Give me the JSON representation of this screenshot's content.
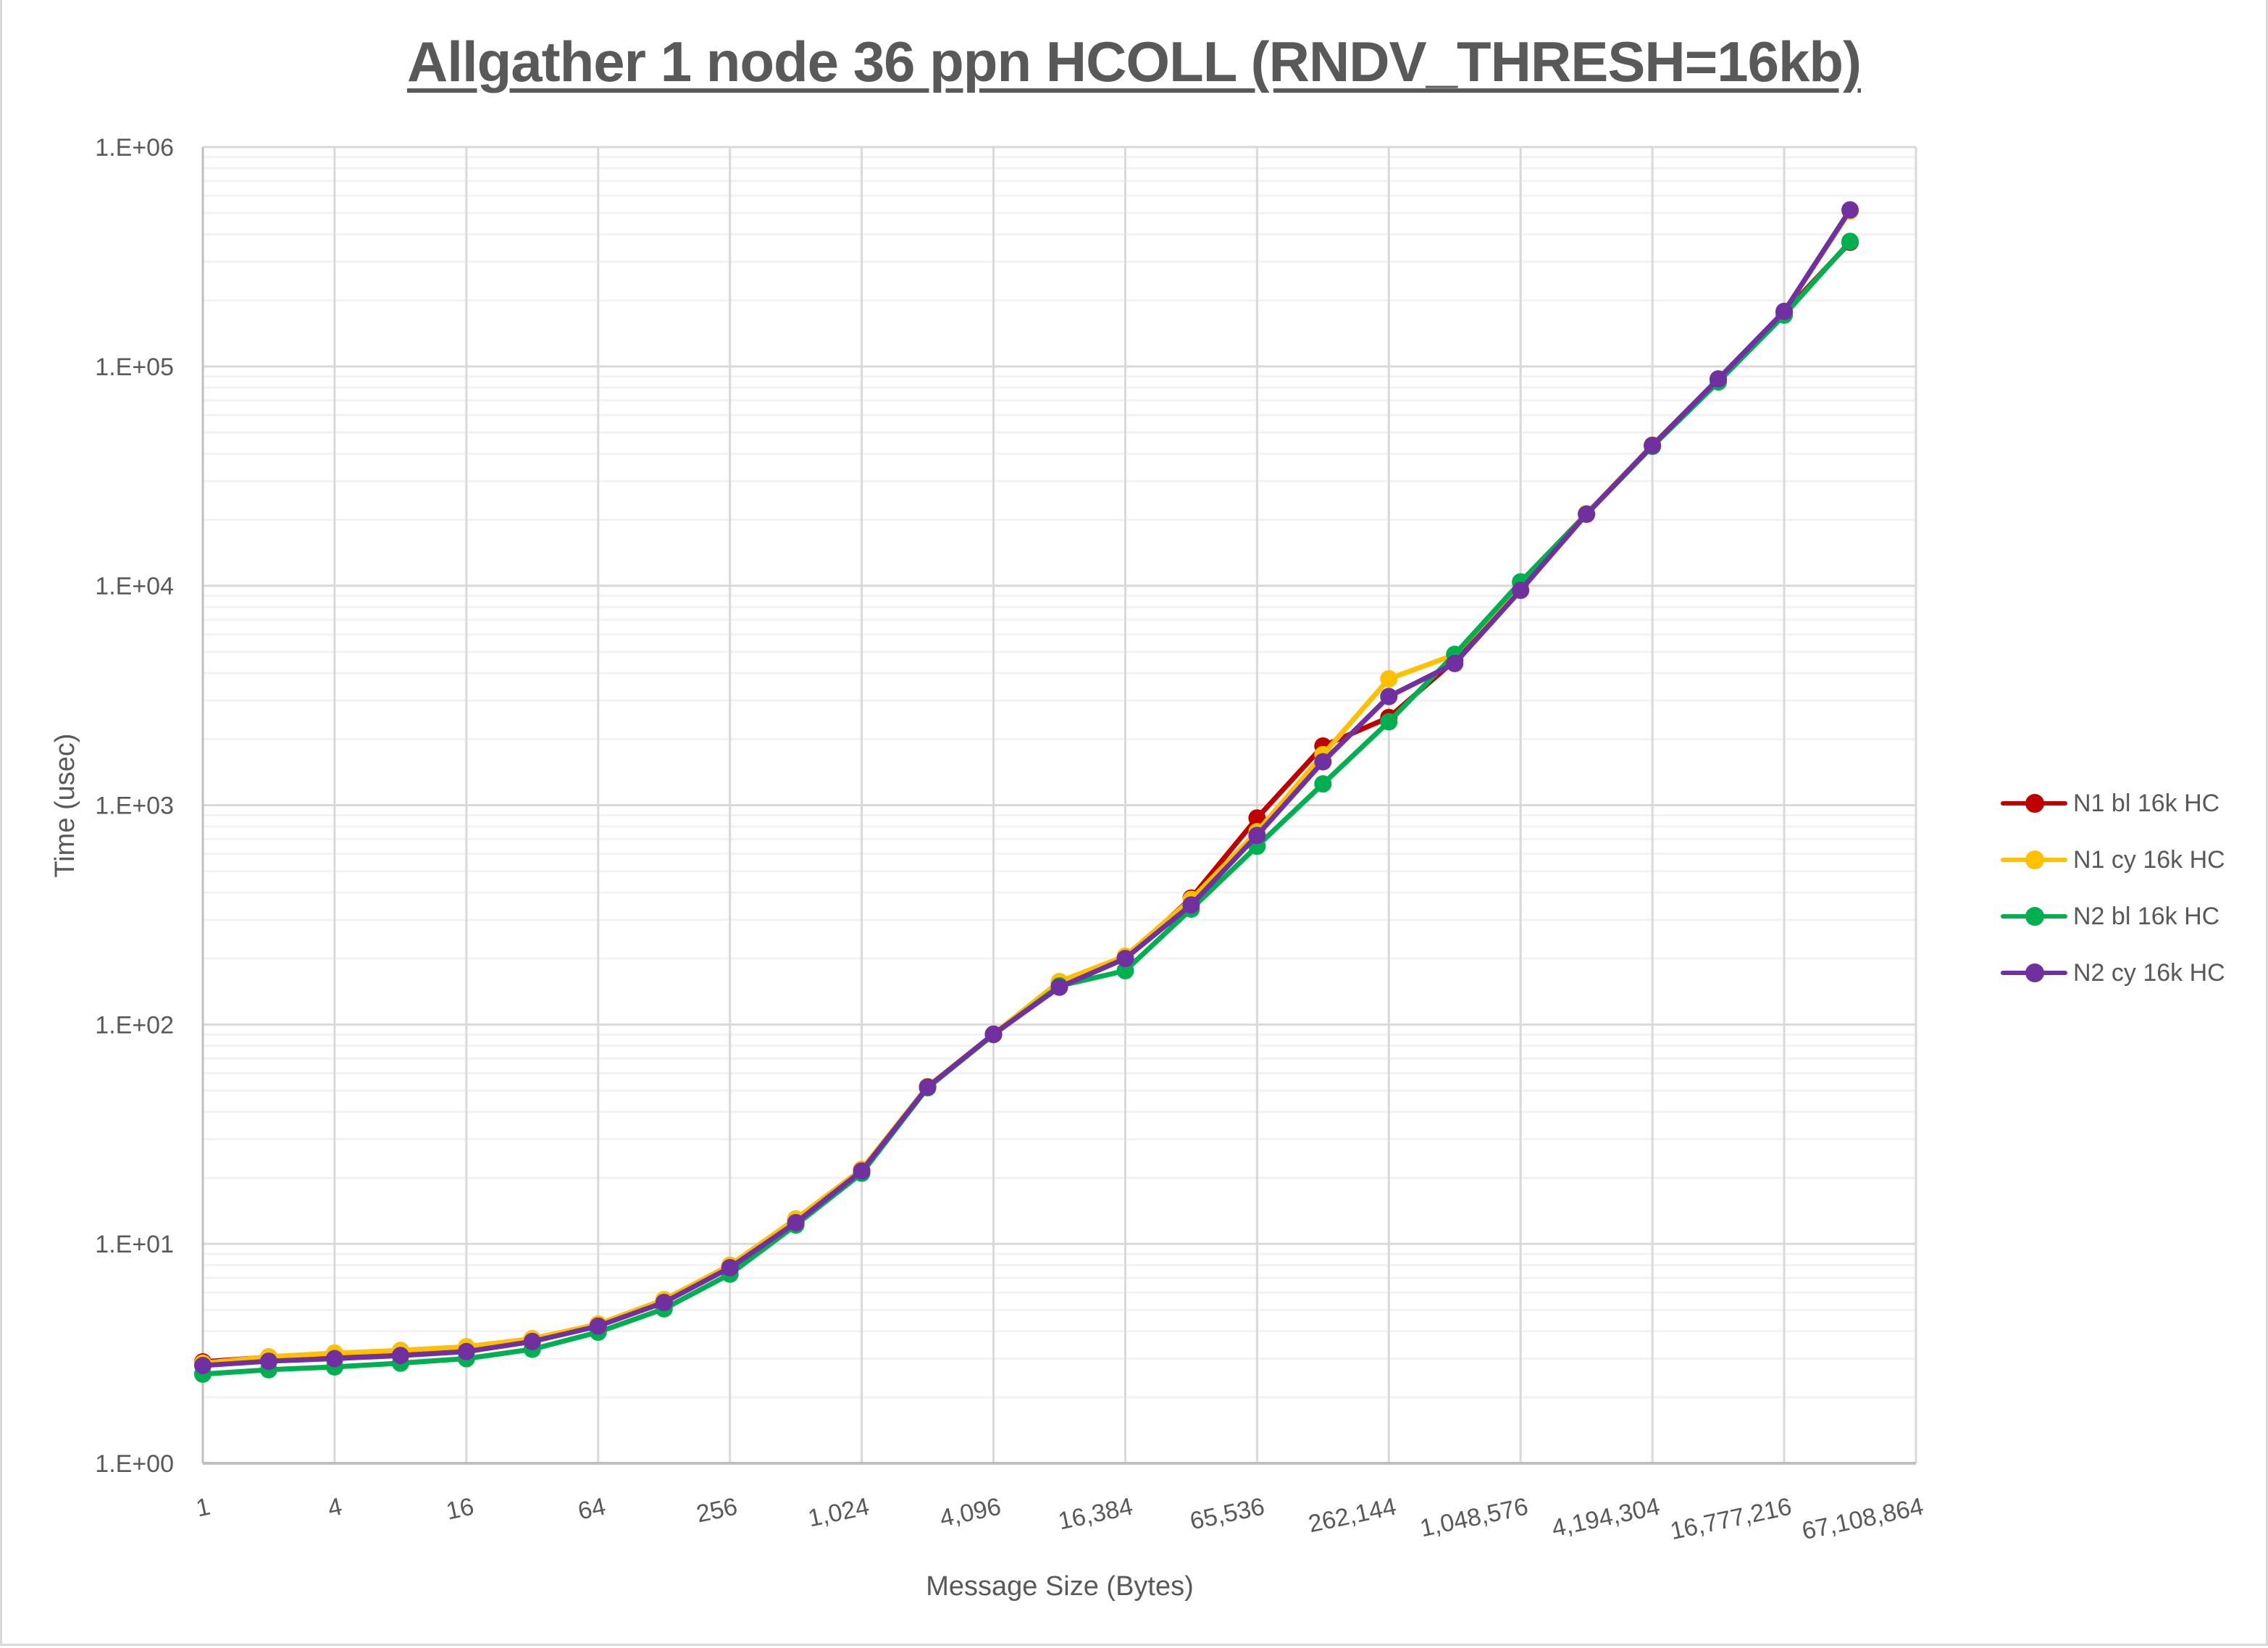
{
  "chart_data": {
    "type": "line",
    "title": "Allgather 1 node 36 ppn HCOLL (RNDV_THRESH=16kb)",
    "xlabel": "Message Size (Bytes)",
    "ylabel": "Time (usec)",
    "x_scale": "log2",
    "y_scale": "log10",
    "ylim": [
      1,
      1000000
    ],
    "y_tick_labels": [
      "1.E+00",
      "1.E+01",
      "1.E+02",
      "1.E+03",
      "1.E+04",
      "1.E+05",
      "1.E+06"
    ],
    "x_tick_labels": [
      "1",
      "4",
      "16",
      "64",
      "256",
      "1,024",
      "4,096",
      "16,384",
      "65,536",
      "262,144",
      "1,048,576",
      "4,194,304",
      "16,777,216",
      "67,108,864"
    ],
    "grid": true,
    "legend_position": "right",
    "x": [
      1,
      2,
      4,
      8,
      16,
      32,
      64,
      128,
      256,
      512,
      1024,
      2048,
      4096,
      8192,
      16384,
      32768,
      65536,
      131072,
      262144,
      524288,
      1048576,
      2097152,
      4194304,
      8388608,
      16777216,
      33554432
    ],
    "series": [
      {
        "name": "N1 bl 16k HC",
        "color": "#C00000",
        "values": [
          2.9,
          3.05,
          3.15,
          3.25,
          3.37,
          3.68,
          4.3,
          5.55,
          7.95,
          12.9,
          21.8,
          52,
          90,
          155,
          200,
          377,
          874,
          1860,
          2510,
          4570,
          10400,
          21300,
          43500,
          87000,
          176000,
          368000
        ]
      },
      {
        "name": "N1 cy 16k HC",
        "color": "#FFC000",
        "values": [
          2.86,
          3.06,
          3.18,
          3.27,
          3.4,
          3.7,
          4.31,
          5.57,
          8.0,
          13.0,
          21.9,
          52.2,
          90.5,
          157,
          205,
          372,
          757,
          1700,
          3765,
          4850,
          10200,
          21300,
          43800,
          87500,
          178000,
          510000
        ]
      },
      {
        "name": "N2 bl 16k HC",
        "color": "#00B050",
        "values": [
          2.55,
          2.67,
          2.75,
          2.86,
          3.0,
          3.31,
          3.96,
          5.06,
          7.28,
          12.2,
          21.0,
          51.5,
          90,
          150,
          176,
          336,
          650,
          1250,
          2400,
          4870,
          10420,
          21200,
          43200,
          85000,
          171400,
          371500
        ]
      },
      {
        "name": "N2 cy 16k HC",
        "color": "#7030A0",
        "values": [
          2.79,
          2.92,
          3.0,
          3.1,
          3.23,
          3.59,
          4.22,
          5.41,
          7.79,
          12.5,
          21.5,
          51.9,
          90.4,
          148,
          200,
          351,
          728,
          1577,
          3128,
          4426,
          9540,
          21200,
          43650,
          87700,
          178200,
          517000
        ]
      }
    ]
  },
  "legend": {
    "items": [
      {
        "label": "N1 bl 16k HC",
        "color": "#C00000"
      },
      {
        "label": "N1 cy 16k HC",
        "color": "#FFC000"
      },
      {
        "label": "N2 bl 16k HC",
        "color": "#00B050"
      },
      {
        "label": "N2 cy 16k HC",
        "color": "#7030A0"
      }
    ]
  }
}
